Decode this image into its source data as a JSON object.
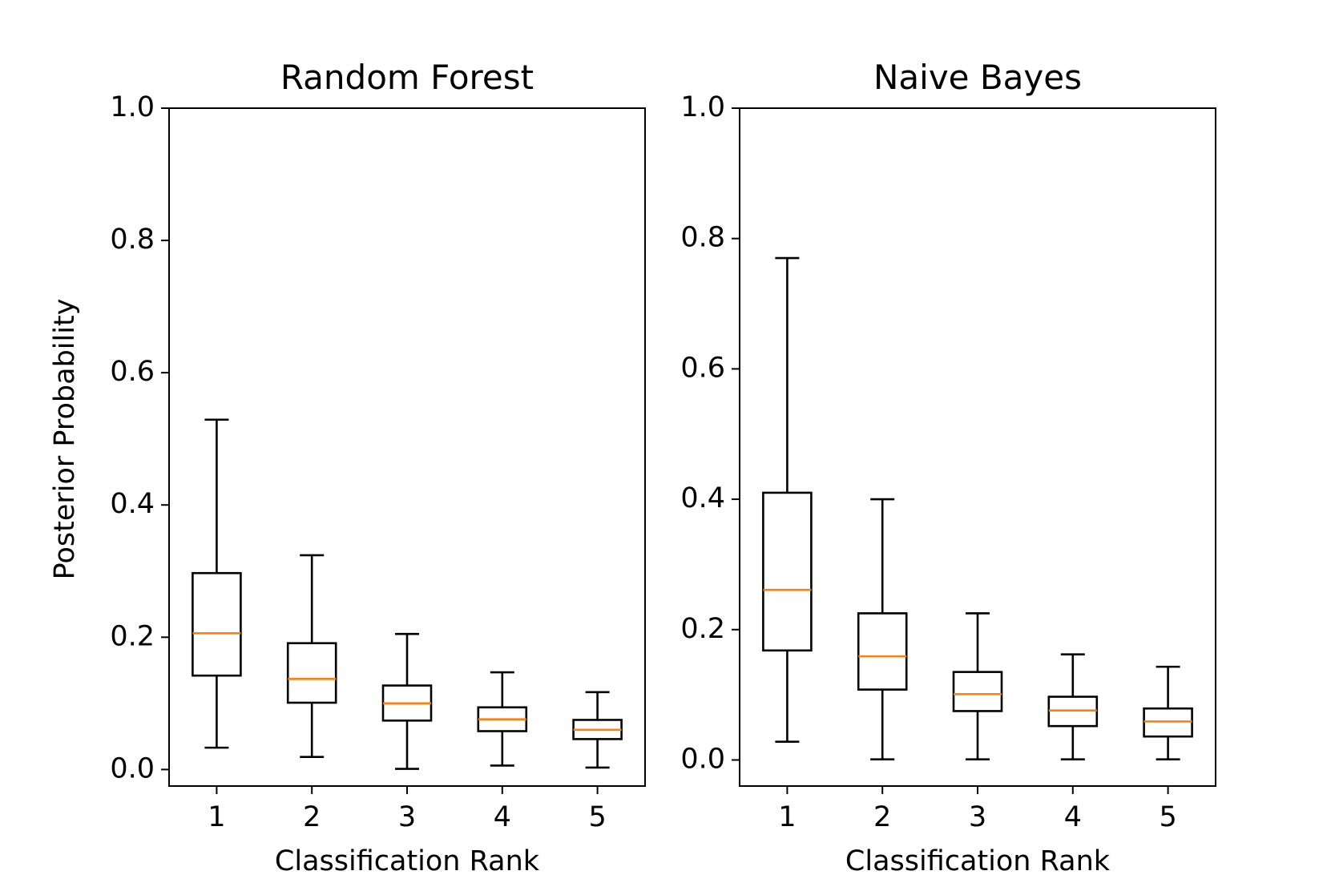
{
  "figure": {
    "ylabel": "Posterior Probability"
  },
  "colors": {
    "box": "#000000",
    "median": "#ff7f0e",
    "background": "#ffffff"
  },
  "chart_data": [
    {
      "type": "box",
      "title": "Random Forest",
      "xlabel": "Classification Rank",
      "ylabel": "Posterior Probability",
      "ylim": [
        -0.025,
        1.0
      ],
      "yticks": [
        0.0,
        0.2,
        0.4,
        0.6,
        0.8,
        1.0
      ],
      "ytick_labels": [
        "0.0",
        "0.2",
        "0.4",
        "0.6",
        "0.8",
        "1.0"
      ],
      "categories": [
        "1",
        "2",
        "3",
        "4",
        "5"
      ],
      "boxes": [
        {
          "whisker_low": 0.033,
          "q1": 0.142,
          "median": 0.206,
          "q3": 0.297,
          "whisker_high": 0.529
        },
        {
          "whisker_low": 0.019,
          "q1": 0.101,
          "median": 0.137,
          "q3": 0.191,
          "whisker_high": 0.324
        },
        {
          "whisker_low": 0.001,
          "q1": 0.074,
          "median": 0.1,
          "q3": 0.127,
          "whisker_high": 0.205
        },
        {
          "whisker_low": 0.006,
          "q1": 0.058,
          "median": 0.076,
          "q3": 0.094,
          "whisker_high": 0.147
        },
        {
          "whisker_low": 0.003,
          "q1": 0.046,
          "median": 0.06,
          "q3": 0.075,
          "whisker_high": 0.117
        }
      ]
    },
    {
      "type": "box",
      "title": "Naive Bayes",
      "xlabel": "Classification Rank",
      "ylabel": "",
      "ylim": [
        -0.04,
        1.0
      ],
      "yticks": [
        0.0,
        0.2,
        0.4,
        0.6,
        0.8,
        1.0
      ],
      "ytick_labels": [
        "0.0",
        "0.2",
        "0.4",
        "0.6",
        "0.8",
        "1.0"
      ],
      "categories": [
        "1",
        "2",
        "3",
        "4",
        "5"
      ],
      "boxes": [
        {
          "whisker_low": 0.028,
          "q1": 0.168,
          "median": 0.261,
          "q3": 0.41,
          "whisker_high": 0.77
        },
        {
          "whisker_low": 0.001,
          "q1": 0.108,
          "median": 0.159,
          "q3": 0.225,
          "whisker_high": 0.4
        },
        {
          "whisker_low": 0.001,
          "q1": 0.075,
          "median": 0.101,
          "q3": 0.135,
          "whisker_high": 0.225
        },
        {
          "whisker_low": 0.001,
          "q1": 0.052,
          "median": 0.076,
          "q3": 0.097,
          "whisker_high": 0.162
        },
        {
          "whisker_low": 0.001,
          "q1": 0.036,
          "median": 0.059,
          "q3": 0.079,
          "whisker_high": 0.143
        }
      ]
    }
  ]
}
